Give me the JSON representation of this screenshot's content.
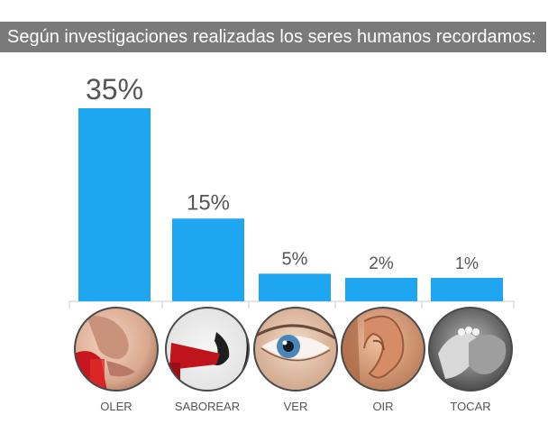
{
  "title": "Según investigaciones realizadas los seres humanos recordamos:",
  "chart_data": {
    "type": "bar",
    "title": "Según investigaciones realizadas los seres humanos recordamos:",
    "categories": [
      "OLER",
      "SABOREAR",
      "VER",
      "OIR",
      "TOCAR"
    ],
    "values": [
      35,
      15,
      5,
      2,
      1
    ],
    "value_labels": [
      "35%",
      "15%",
      "5%",
      "2%",
      "1%"
    ],
    "xlabel": "",
    "ylabel": "",
    "grid": false,
    "legend": "none",
    "icons": [
      "nose-smelling-icon",
      "mouth-tasting-icon",
      "eye-icon",
      "ear-icon",
      "hands-touching-icon"
    ],
    "colors": {
      "bar": "#1ea7f0",
      "title_bg": "#7a7a7a",
      "text": "#555555"
    }
  }
}
